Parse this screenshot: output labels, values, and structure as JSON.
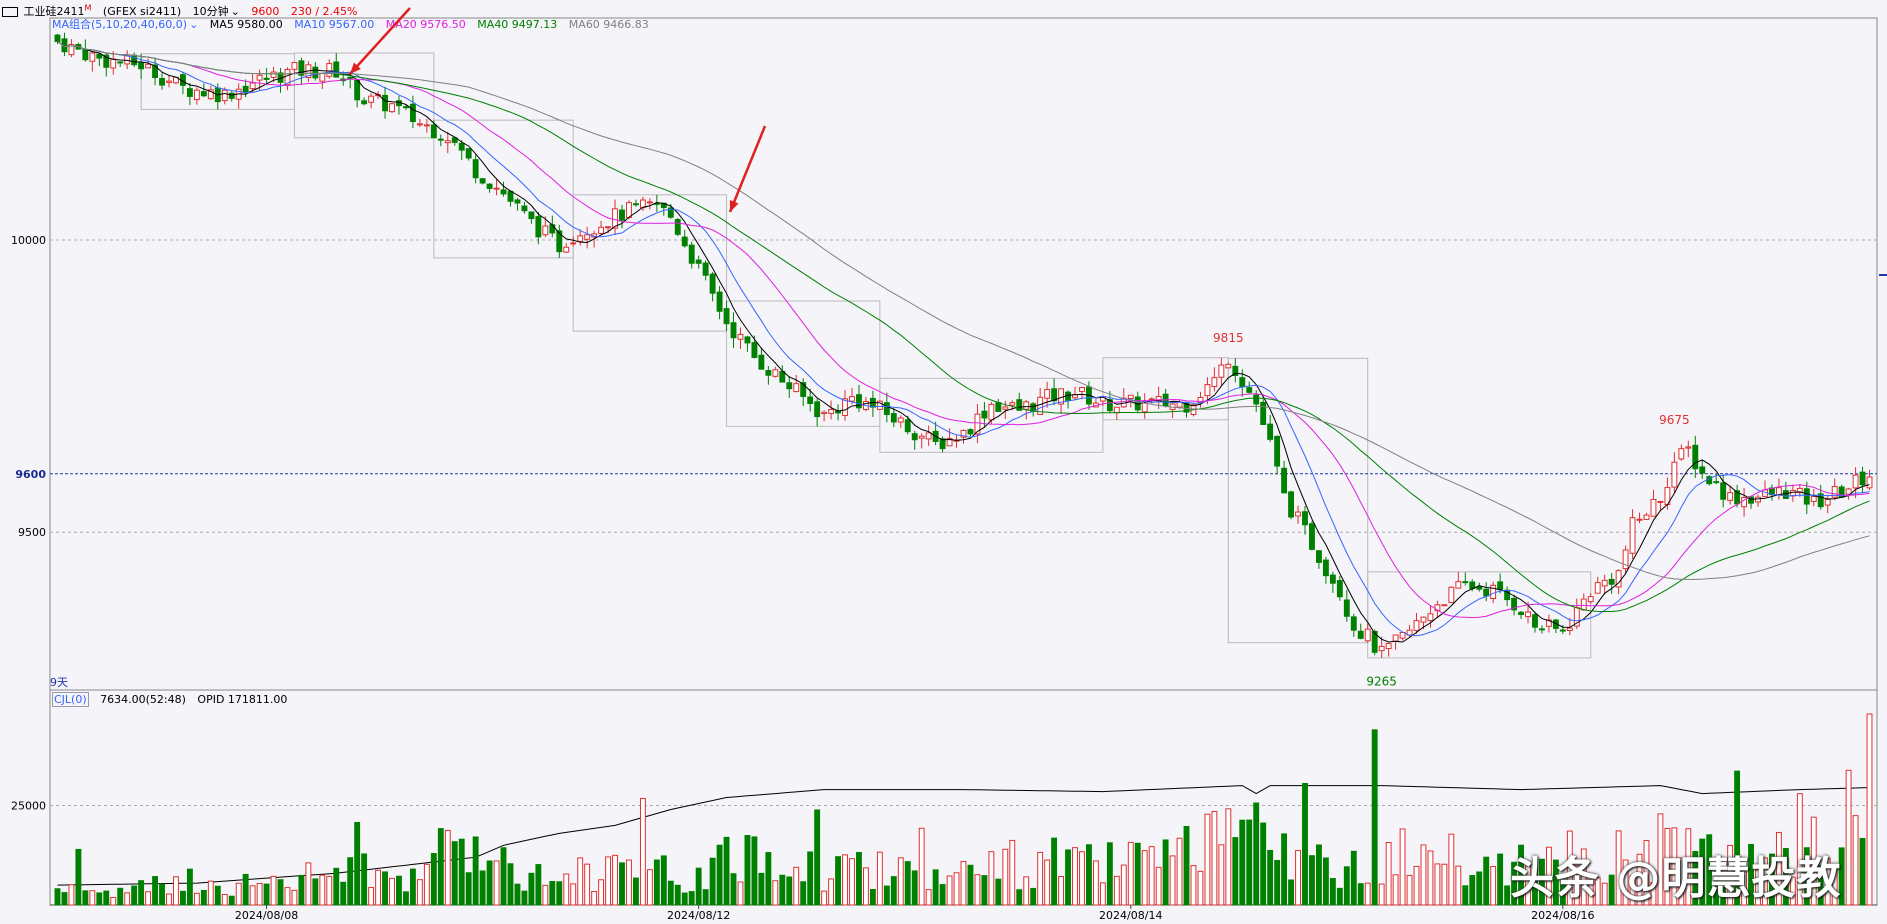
{
  "header": {
    "symbol": "工业硅2411",
    "symbol_sup": "M",
    "code": "(GFEX si2411)",
    "period": "10分钟",
    "last_price": "9600",
    "change": "230 / 2.45%"
  },
  "ma_legend": {
    "label": "MA组合(5,10,20,40,60,0)",
    "items": [
      {
        "text": "MA5 9580.00",
        "color": "#000000"
      },
      {
        "text": "MA10 9567.00",
        "color": "#3366ff"
      },
      {
        "text": "MA20 9576.50",
        "color": "#e020e0"
      },
      {
        "text": "MA40 9497.13",
        "color": "#008000"
      },
      {
        "text": "MA60 9466.83",
        "color": "#808080"
      }
    ]
  },
  "volume_legend": {
    "label": "CJL(0)",
    "volume": "7634.00(52:48)",
    "opid": "OPID 171811.00"
  },
  "price_axis": {
    "ticks": [
      {
        "value": 10000,
        "label": "10000"
      },
      {
        "value": 9500,
        "label": "9500"
      }
    ],
    "current": {
      "value": 9600,
      "label": "9600"
    }
  },
  "volume_axis": {
    "ticks": [
      {
        "value": 25000,
        "label": "25000"
      }
    ]
  },
  "dates": [
    "2024/08/08",
    "2024/08/12",
    "2024/08/14",
    "2024/08/16"
  ],
  "annotations": {
    "high1": "9815",
    "low1": "9265",
    "high2": "9675",
    "days": "9天"
  },
  "watermark": "头条 @明慧投教",
  "colors": {
    "up": "#e03030",
    "down": "#008000",
    "ma5": "#000000",
    "ma10": "#3366ff",
    "ma20": "#e020e0",
    "ma40": "#008000",
    "ma60": "#808080",
    "arrow": "#e02020"
  },
  "chart_data": {
    "type": "candlestick",
    "price_range": [
      9230,
      10380
    ],
    "volume_range": [
      0,
      50000
    ],
    "key_points": [
      {
        "label": "9815",
        "value": 9815
      },
      {
        "label": "9265",
        "value": 9265
      },
      {
        "label": "9675",
        "value": 9675
      }
    ],
    "close_path": [
      [
        0,
        10340
      ],
      [
        6,
        10310
      ],
      [
        12,
        10300
      ],
      [
        18,
        10260
      ],
      [
        24,
        10250
      ],
      [
        28,
        10270
      ],
      [
        34,
        10290
      ],
      [
        40,
        10290
      ],
      [
        44,
        10240
      ],
      [
        48,
        10230
      ],
      [
        52,
        10200
      ],
      [
        56,
        10180
      ],
      [
        60,
        10120
      ],
      [
        64,
        10080
      ],
      [
        68,
        10030
      ],
      [
        72,
        9990
      ],
      [
        74,
        10010
      ],
      [
        78,
        10030
      ],
      [
        82,
        10050
      ],
      [
        86,
        10060
      ],
      [
        88,
        10040
      ],
      [
        92,
        9950
      ],
      [
        96,
        9860
      ],
      [
        100,
        9800
      ],
      [
        104,
        9760
      ],
      [
        108,
        9720
      ],
      [
        110,
        9700
      ],
      [
        114,
        9730
      ],
      [
        118,
        9710
      ],
      [
        122,
        9680
      ],
      [
        126,
        9650
      ],
      [
        130,
        9670
      ],
      [
        134,
        9720
      ],
      [
        138,
        9710
      ],
      [
        142,
        9730
      ],
      [
        146,
        9740
      ],
      [
        150,
        9720
      ],
      [
        154,
        9720
      ],
      [
        158,
        9720
      ],
      [
        162,
        9720
      ],
      [
        164,
        9740
      ],
      [
        166,
        9760
      ],
      [
        168,
        9800
      ],
      [
        172,
        9720
      ],
      [
        174,
        9650
      ],
      [
        176,
        9560
      ],
      [
        180,
        9480
      ],
      [
        184,
        9400
      ],
      [
        186,
        9340
      ],
      [
        188,
        9320
      ],
      [
        190,
        9290
      ],
      [
        194,
        9330
      ],
      [
        198,
        9380
      ],
      [
        202,
        9410
      ],
      [
        206,
        9400
      ],
      [
        210,
        9370
      ],
      [
        212,
        9340
      ],
      [
        216,
        9330
      ],
      [
        220,
        9400
      ],
      [
        224,
        9430
      ],
      [
        226,
        9510
      ],
      [
        230,
        9560
      ],
      [
        232,
        9620
      ],
      [
        234,
        9640
      ],
      [
        236,
        9600
      ],
      [
        240,
        9560
      ],
      [
        244,
        9560
      ],
      [
        248,
        9570
      ],
      [
        252,
        9550
      ],
      [
        256,
        9570
      ],
      [
        260,
        9600
      ]
    ],
    "volume_path": [
      [
        0,
        4000
      ],
      [
        10,
        3000
      ],
      [
        20,
        6000
      ],
      [
        30,
        4000
      ],
      [
        40,
        8000
      ],
      [
        50,
        7000
      ],
      [
        60,
        15000
      ],
      [
        70,
        6000
      ],
      [
        80,
        9000
      ],
      [
        90,
        6000
      ],
      [
        100,
        12000
      ],
      [
        110,
        8000
      ],
      [
        120,
        9000
      ],
      [
        130,
        7000
      ],
      [
        140,
        10000
      ],
      [
        150,
        9000
      ],
      [
        160,
        10000
      ],
      [
        170,
        16000
      ],
      [
        180,
        9000
      ],
      [
        190,
        12000
      ],
      [
        200,
        10000
      ],
      [
        210,
        9000
      ],
      [
        220,
        11000
      ],
      [
        230,
        13000
      ],
      [
        240,
        10000
      ],
      [
        250,
        17000
      ],
      [
        260,
        21000
      ]
    ],
    "opid_path": [
      [
        0,
        5000
      ],
      [
        20,
        5500
      ],
      [
        40,
        8000
      ],
      [
        60,
        12000
      ],
      [
        64,
        15000
      ],
      [
        72,
        18000
      ],
      [
        80,
        20000
      ],
      [
        88,
        24000
      ],
      [
        96,
        27000
      ],
      [
        110,
        29000
      ],
      [
        130,
        29000
      ],
      [
        150,
        28500
      ],
      [
        170,
        30000
      ],
      [
        172,
        28000
      ],
      [
        174,
        30000
      ],
      [
        190,
        30000
      ],
      [
        210,
        29000
      ],
      [
        230,
        30000
      ],
      [
        236,
        28000
      ],
      [
        250,
        29000
      ],
      [
        260,
        29500
      ]
    ]
  }
}
